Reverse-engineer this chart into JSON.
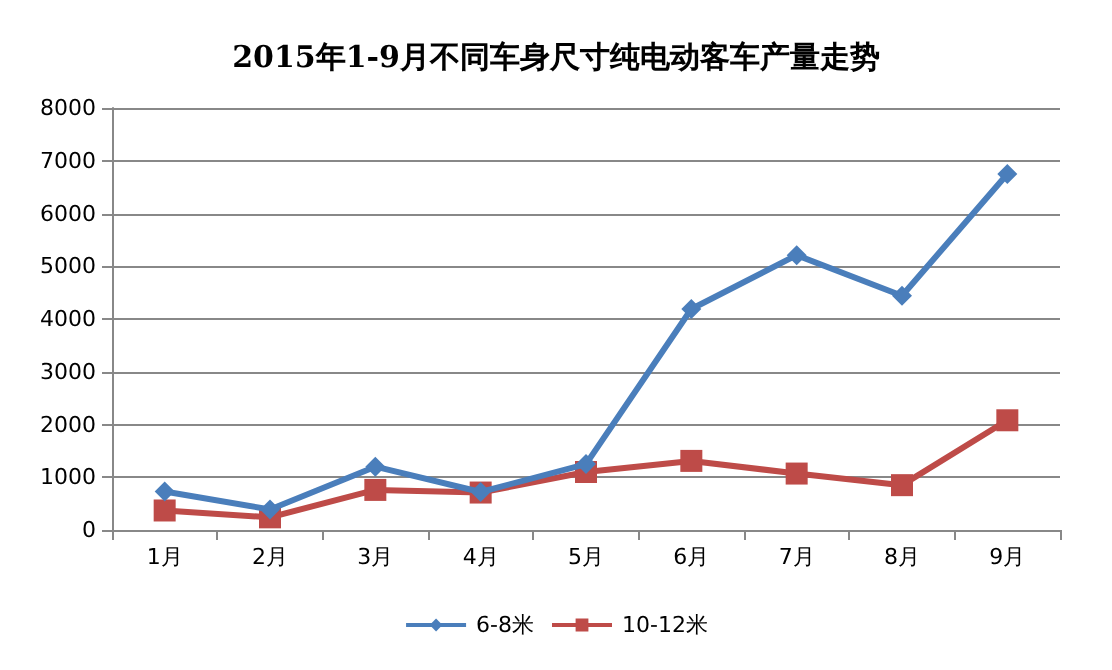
{
  "chart_data": {
    "type": "line",
    "title": "2015年1-9月不同车身尺寸纯电动客车产量走势",
    "categories": [
      "1月",
      "2月",
      "3月",
      "4月",
      "5月",
      "6月",
      "7月",
      "8月",
      "9月"
    ],
    "series": [
      {
        "name": "6-8米",
        "color": "#4a7ebb",
        "marker": "diamond",
        "values": [
          730,
          390,
          1200,
          720,
          1250,
          4190,
          5210,
          4440,
          6750
        ]
      },
      {
        "name": "10-12米",
        "color": "#be4b48",
        "marker": "square",
        "values": [
          370,
          240,
          760,
          710,
          1100,
          1310,
          1070,
          850,
          2080
        ]
      }
    ],
    "ylim": [
      0,
      8000
    ],
    "yticks": [
      0,
      1000,
      2000,
      3000,
      4000,
      5000,
      6000,
      7000,
      8000
    ],
    "grid": "y",
    "legend": "bottom"
  }
}
